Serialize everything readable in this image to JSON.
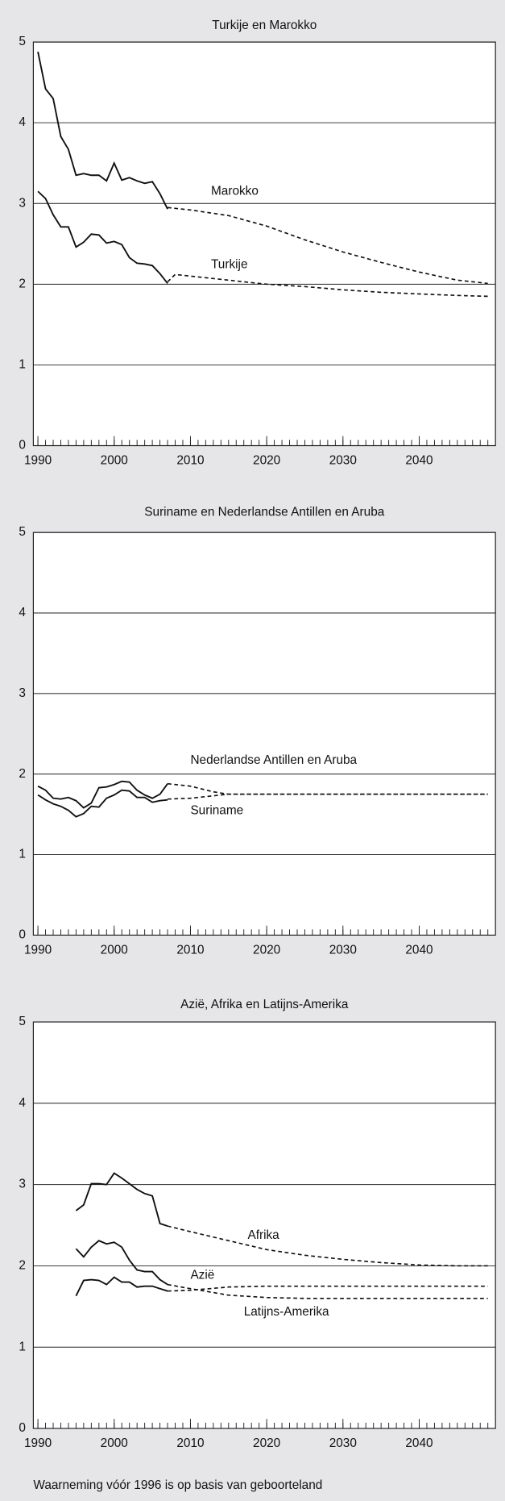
{
  "chart_data": [
    {
      "type": "line",
      "title": "Turkije en Marokko",
      "x": [
        1990,
        1991,
        1992,
        1993,
        1994,
        1995,
        1996,
        1997,
        1998,
        1999,
        2000,
        2001,
        2002,
        2003,
        2004,
        2005,
        2006,
        2007
      ],
      "x_projection": [
        2007,
        2008,
        2010,
        2015,
        2020,
        2025,
        2030,
        2035,
        2040,
        2045,
        2049
      ],
      "series": [
        {
          "name": "Marokko",
          "color": "#111111",
          "values": [
            4.88,
            4.42,
            4.3,
            3.83,
            3.67,
            3.35,
            3.37,
            3.35,
            3.35,
            3.28,
            3.5,
            3.29,
            3.32,
            3.28,
            3.25,
            3.27,
            3.12,
            2.93
          ],
          "projection": [
            2.95,
            2.94,
            2.92,
            2.85,
            2.72,
            2.55,
            2.4,
            2.27,
            2.15,
            2.05,
            2.01
          ]
        },
        {
          "name": "Turkije",
          "color": "#111111",
          "values": [
            3.15,
            3.06,
            2.86,
            2.71,
            2.71,
            2.46,
            2.52,
            2.62,
            2.61,
            2.51,
            2.53,
            2.49,
            2.33,
            2.26,
            2.25,
            2.23,
            2.13,
            2.01
          ],
          "projection": [
            2.03,
            2.12,
            2.1,
            2.05,
            2.0,
            1.97,
            1.93,
            1.9,
            1.88,
            1.86,
            1.85
          ]
        }
      ],
      "xlim": [
        1989.4,
        2050
      ],
      "xticks": [
        1990,
        2000,
        2010,
        2020,
        2030,
        2040
      ],
      "xminor": [
        1990,
        1991,
        1992,
        1993,
        1994,
        1995,
        1996,
        1997,
        1998,
        1999,
        2000,
        2001,
        2002,
        2003,
        2004,
        2005,
        2006,
        2007,
        2008,
        2009,
        2010,
        2011,
        2012,
        2013,
        2014,
        2015,
        2016,
        2017,
        2018,
        2019,
        2020,
        2021,
        2022,
        2023,
        2024,
        2025,
        2026,
        2027,
        2028,
        2029,
        2030,
        2031,
        2032,
        2033,
        2034,
        2035,
        2036,
        2037,
        2038,
        2039,
        2040,
        2041,
        2042,
        2043,
        2044,
        2045,
        2046,
        2047,
        2048,
        2049
      ],
      "ylim": [
        0,
        5
      ],
      "yticks": [
        0,
        1,
        2,
        3,
        4,
        5
      ],
      "grid": true
    },
    {
      "type": "line",
      "title": "Suriname en Nederlandse Antillen en Aruba",
      "x": [
        1990,
        1991,
        1992,
        1993,
        1994,
        1995,
        1996,
        1997,
        1998,
        1999,
        2000,
        2001,
        2002,
        2003,
        2004,
        2005,
        2006,
        2007
      ],
      "x_projection": [
        2007,
        2010,
        2013,
        2015,
        2020,
        2030,
        2040,
        2049
      ],
      "series": [
        {
          "name": "Nederlandse Antillen en Aruba",
          "color": "#111111",
          "values": [
            1.85,
            1.8,
            1.7,
            1.69,
            1.71,
            1.67,
            1.58,
            1.64,
            1.83,
            1.84,
            1.87,
            1.91,
            1.9,
            1.8,
            1.74,
            1.7,
            1.75,
            1.88
          ],
          "projection": [
            1.88,
            1.85,
            1.78,
            1.75,
            1.75,
            1.75,
            1.75,
            1.75
          ]
        },
        {
          "name": "Suriname",
          "color": "#111111",
          "values": [
            1.74,
            1.68,
            1.63,
            1.6,
            1.55,
            1.47,
            1.51,
            1.6,
            1.59,
            1.7,
            1.74,
            1.8,
            1.79,
            1.71,
            1.71,
            1.65,
            1.67,
            1.68
          ],
          "projection": [
            1.69,
            1.7,
            1.73,
            1.75,
            1.75,
            1.75,
            1.75,
            1.75
          ]
        }
      ],
      "xlim": [
        1989.4,
        2050
      ],
      "xticks": [
        1990,
        2000,
        2010,
        2020,
        2030,
        2040
      ],
      "xminor": [
        1990,
        1991,
        1992,
        1993,
        1994,
        1995,
        1996,
        1997,
        1998,
        1999,
        2000,
        2001,
        2002,
        2003,
        2004,
        2005,
        2006,
        2007,
        2008,
        2009,
        2010,
        2011,
        2012,
        2013,
        2014,
        2015,
        2016,
        2017,
        2018,
        2019,
        2020,
        2021,
        2022,
        2023,
        2024,
        2025,
        2026,
        2027,
        2028,
        2029,
        2030,
        2031,
        2032,
        2033,
        2034,
        2035,
        2036,
        2037,
        2038,
        2039,
        2040,
        2041,
        2042,
        2043,
        2044,
        2045,
        2046,
        2047,
        2048,
        2049
      ],
      "ylim": [
        0,
        5
      ],
      "yticks": [
        0,
        1,
        2,
        3,
        4,
        5
      ],
      "grid": true
    },
    {
      "type": "line",
      "title": "Azië, Afrika en Latijns-Amerika",
      "x": [
        1990,
        1991,
        1992,
        1993,
        1994,
        1995,
        1996,
        1997,
        1998,
        1999,
        2000,
        2001,
        2002,
        2003,
        2004,
        2005,
        2006,
        2007
      ],
      "x_projection": [
        2007,
        2010,
        2015,
        2020,
        2025,
        2030,
        2035,
        2040,
        2045,
        2049
      ],
      "series": [
        {
          "name": "Afrika",
          "color": "#111111",
          "values": [
            null,
            null,
            null,
            null,
            null,
            2.68,
            2.75,
            3.01,
            3.01,
            3.0,
            3.14,
            3.08,
            3.01,
            2.94,
            2.89,
            2.86,
            2.52,
            2.49
          ],
          "projection": [
            2.49,
            2.42,
            2.31,
            2.2,
            2.13,
            2.08,
            2.04,
            2.01,
            2.0,
            2.0
          ]
        },
        {
          "name": "Azië",
          "color": "#111111",
          "values": [
            null,
            null,
            null,
            null,
            null,
            1.63,
            1.82,
            1.83,
            1.82,
            1.77,
            1.86,
            1.8,
            1.8,
            1.74,
            1.75,
            1.75,
            1.72,
            1.69
          ],
          "projection": [
            1.69,
            1.7,
            1.74,
            1.75,
            1.75,
            1.75,
            1.75,
            1.75,
            1.75,
            1.75
          ]
        },
        {
          "name": "Latijns-Amerika",
          "color": "#111111",
          "values": [
            null,
            null,
            null,
            null,
            null,
            2.21,
            2.11,
            2.23,
            2.31,
            2.27,
            2.29,
            2.23,
            2.07,
            1.95,
            1.93,
            1.93,
            1.83,
            1.77
          ],
          "projection": [
            1.77,
            1.72,
            1.64,
            1.61,
            1.6,
            1.6,
            1.6,
            1.6,
            1.6,
            1.6
          ]
        }
      ],
      "xlim": [
        1989.4,
        2050
      ],
      "xticks": [
        1990,
        2000,
        2010,
        2020,
        2030,
        2040
      ],
      "xminor": [
        1990,
        1991,
        1992,
        1993,
        1994,
        1995,
        1996,
        1997,
        1998,
        1999,
        2000,
        2001,
        2002,
        2003,
        2004,
        2005,
        2006,
        2007,
        2008,
        2009,
        2010,
        2011,
        2012,
        2013,
        2014,
        2015,
        2016,
        2017,
        2018,
        2019,
        2020,
        2021,
        2022,
        2023,
        2024,
        2025,
        2026,
        2027,
        2028,
        2029,
        2030,
        2031,
        2032,
        2033,
        2034,
        2035,
        2036,
        2037,
        2038,
        2039,
        2040,
        2041,
        2042,
        2043,
        2044,
        2045,
        2046,
        2047,
        2048,
        2049
      ],
      "ylim": [
        0,
        5
      ],
      "yticks": [
        0,
        1,
        2,
        3,
        4,
        5
      ],
      "grid": true
    }
  ],
  "footnote": "Waarneming vóór 1996 is op basis van geboorteland"
}
